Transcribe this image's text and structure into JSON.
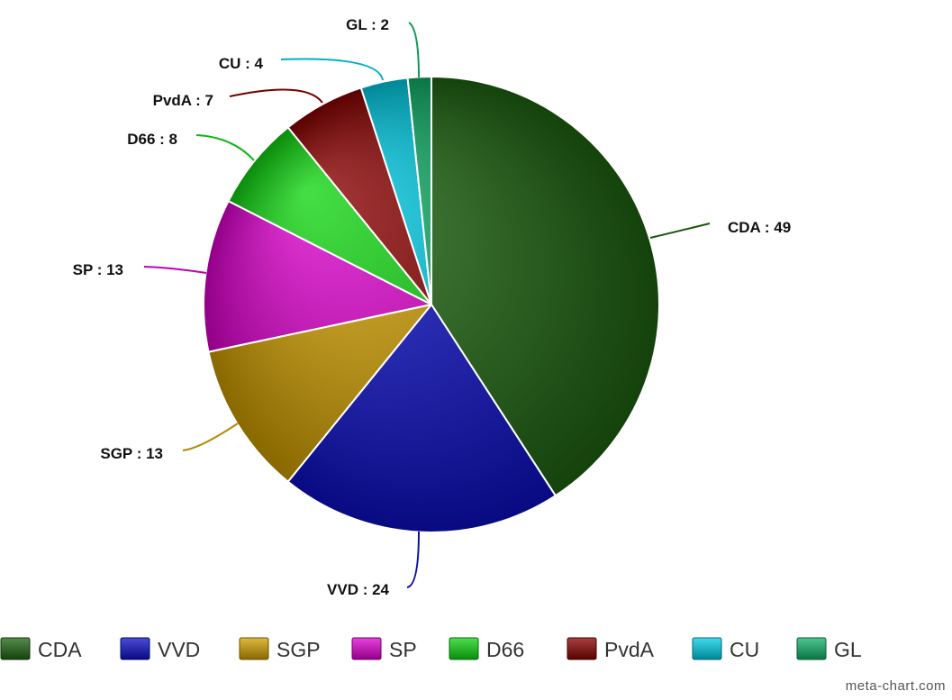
{
  "chart_data": {
    "type": "pie",
    "title": "",
    "slices": [
      {
        "label": "CDA",
        "value": 49,
        "color": "#1f6611",
        "label_text": "CDA : 49"
      },
      {
        "label": "VVD",
        "value": 24,
        "color": "#0d10c8",
        "label_text": "VVD : 24"
      },
      {
        "label": "SGP",
        "value": 13,
        "color": "#d3a000",
        "label_text": "SGP : 13"
      },
      {
        "label": "SP",
        "value": 13,
        "color": "#e000d0",
        "label_text": "SP : 13"
      },
      {
        "label": "D66",
        "value": 8,
        "color": "#11d611",
        "label_text": "D66 : 8"
      },
      {
        "label": "PvdA",
        "value": 7,
        "color": "#8b0000",
        "label_text": "PvdA : 7"
      },
      {
        "label": "CU",
        "value": 4,
        "color": "#00cfe8",
        "label_text": "CU : 4"
      },
      {
        "label": "GL",
        "value": 2,
        "color": "#11b36a",
        "label_text": "GL : 2"
      }
    ],
    "legend": {
      "position": "bottom",
      "items": [
        "CDA",
        "VVD",
        "SGP",
        "SP",
        "D66",
        "PvdA",
        "CU",
        "GL"
      ]
    },
    "start_angle": "12 o'clock",
    "direction": "clockwise"
  },
  "watermark": "meta-chart.com"
}
